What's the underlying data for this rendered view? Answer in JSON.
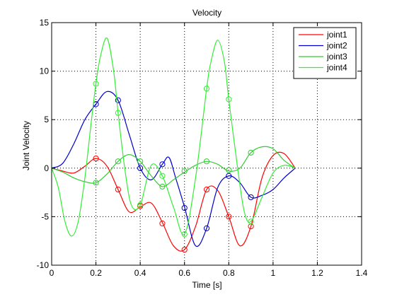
{
  "chart_data": {
    "type": "line",
    "title": "Velocity",
    "xlabel": "Time [s]",
    "ylabel": "Joint Velocity",
    "xlim": [
      0,
      1.4
    ],
    "ylim": [
      -10,
      15
    ],
    "xticks": [
      0,
      0.2,
      0.4,
      0.6,
      0.8,
      1,
      1.2,
      1.4
    ],
    "xtick_labels": [
      "0",
      "0.2",
      "0.4",
      "0.6",
      "0.8",
      "1",
      "1.2",
      "1.4"
    ],
    "yticks": [
      -10,
      -5,
      0,
      5,
      10,
      15
    ],
    "ytick_labels": [
      "-10",
      "-5",
      "0",
      "5",
      "10",
      "15"
    ],
    "grid": true,
    "legend_position": "top-right",
    "series": [
      {
        "name": "joint1",
        "color": "#ff0000",
        "x": [
          0,
          0.05,
          0.1,
          0.15,
          0.2,
          0.25,
          0.3,
          0.35,
          0.4,
          0.45,
          0.5,
          0.55,
          0.6,
          0.65,
          0.7,
          0.75,
          0.8,
          0.85,
          0.9,
          0.95,
          1.0,
          1.05,
          1.1
        ],
        "y": [
          0,
          -0.3,
          -0.5,
          0.2,
          1.0,
          0.2,
          -2.2,
          -4.5,
          -4.0,
          -3.6,
          -5.6,
          -8.0,
          -8.4,
          -6.0,
          -2.2,
          -2.3,
          -5.0,
          -8.0,
          -6.0,
          -1.0,
          1.3,
          1.5,
          0
        ],
        "markers": [
          [
            0.2,
            1.0
          ],
          [
            0.3,
            -2.2
          ],
          [
            0.4,
            -3.9
          ],
          [
            0.5,
            -5.7
          ],
          [
            0.6,
            -8.4
          ],
          [
            0.7,
            -2.2
          ],
          [
            0.8,
            -5.0
          ],
          [
            0.9,
            -6.0
          ]
        ]
      },
      {
        "name": "joint2",
        "color": "#0000cc",
        "x": [
          0,
          0.05,
          0.1,
          0.15,
          0.2,
          0.25,
          0.3,
          0.35,
          0.4,
          0.45,
          0.5,
          0.53,
          0.56,
          0.6,
          0.65,
          0.7,
          0.75,
          0.8,
          0.85,
          0.9,
          0.95,
          1.0,
          1.05,
          1.1
        ],
        "y": [
          0,
          0.5,
          2.5,
          5.0,
          6.6,
          7.9,
          7.0,
          3.5,
          0.0,
          -1.2,
          0.4,
          1.1,
          -1.0,
          -4.0,
          -8.0,
          -6.2,
          -2.0,
          -0.8,
          -1.5,
          -3.0,
          -2.8,
          -2.2,
          -1.0,
          0
        ],
        "markers": [
          [
            0.2,
            6.6
          ],
          [
            0.3,
            7.0
          ],
          [
            0.4,
            0.0
          ],
          [
            0.5,
            0.4
          ],
          [
            0.6,
            -4.1
          ],
          [
            0.7,
            -6.2
          ],
          [
            0.8,
            -0.8
          ],
          [
            0.9,
            -3.0
          ]
        ]
      },
      {
        "name": "joint3",
        "color": "#33cc33",
        "x": [
          0,
          0.05,
          0.1,
          0.15,
          0.2,
          0.25,
          0.3,
          0.35,
          0.4,
          0.45,
          0.5,
          0.55,
          0.6,
          0.65,
          0.7,
          0.75,
          0.8,
          0.85,
          0.9,
          0.95,
          1.0,
          1.05,
          1.1
        ],
        "y": [
          0,
          -0.4,
          -1.0,
          -1.4,
          -1.5,
          -0.6,
          0.7,
          1.4,
          0.7,
          -0.8,
          -1.9,
          -1.2,
          -0.4,
          0.3,
          0.7,
          0.4,
          -0.3,
          0.0,
          1.6,
          2.2,
          2.0,
          0.8,
          0
        ],
        "markers": [
          [
            0.2,
            -1.5
          ],
          [
            0.3,
            0.7
          ],
          [
            0.4,
            0.7
          ],
          [
            0.5,
            -1.9
          ],
          [
            0.6,
            -0.3
          ],
          [
            0.7,
            0.7
          ],
          [
            0.8,
            -0.2
          ],
          [
            0.9,
            1.6
          ]
        ]
      },
      {
        "name": "joint4",
        "color": "#33ee33",
        "x": [
          0,
          0.03,
          0.06,
          0.09,
          0.12,
          0.15,
          0.18,
          0.2,
          0.22,
          0.25,
          0.28,
          0.3,
          0.33,
          0.36,
          0.4,
          0.45,
          0.5,
          0.55,
          0.6,
          0.65,
          0.7,
          0.72,
          0.75,
          0.78,
          0.8,
          0.84,
          0.87,
          0.9,
          0.95,
          1.0,
          1.05,
          1.1
        ],
        "y": [
          0,
          -2.0,
          -5.5,
          -7.0,
          -5.5,
          -1.0,
          5.0,
          8.7,
          11.5,
          13.4,
          10.0,
          5.7,
          0.0,
          -3.8,
          -3.8,
          0.3,
          -0.8,
          -4.0,
          -6.8,
          -1.0,
          8.2,
          11.0,
          13.2,
          11.0,
          7.1,
          0.0,
          -4.5,
          -5.5,
          -3.0,
          -0.5,
          0.3,
          0
        ],
        "markers": [
          [
            0.2,
            8.7
          ],
          [
            0.3,
            5.7
          ],
          [
            0.4,
            -3.8
          ],
          [
            0.5,
            -0.8
          ],
          [
            0.6,
            -6.8
          ],
          [
            0.7,
            8.2
          ],
          [
            0.8,
            7.1
          ],
          [
            0.9,
            -5.5
          ]
        ]
      }
    ]
  }
}
